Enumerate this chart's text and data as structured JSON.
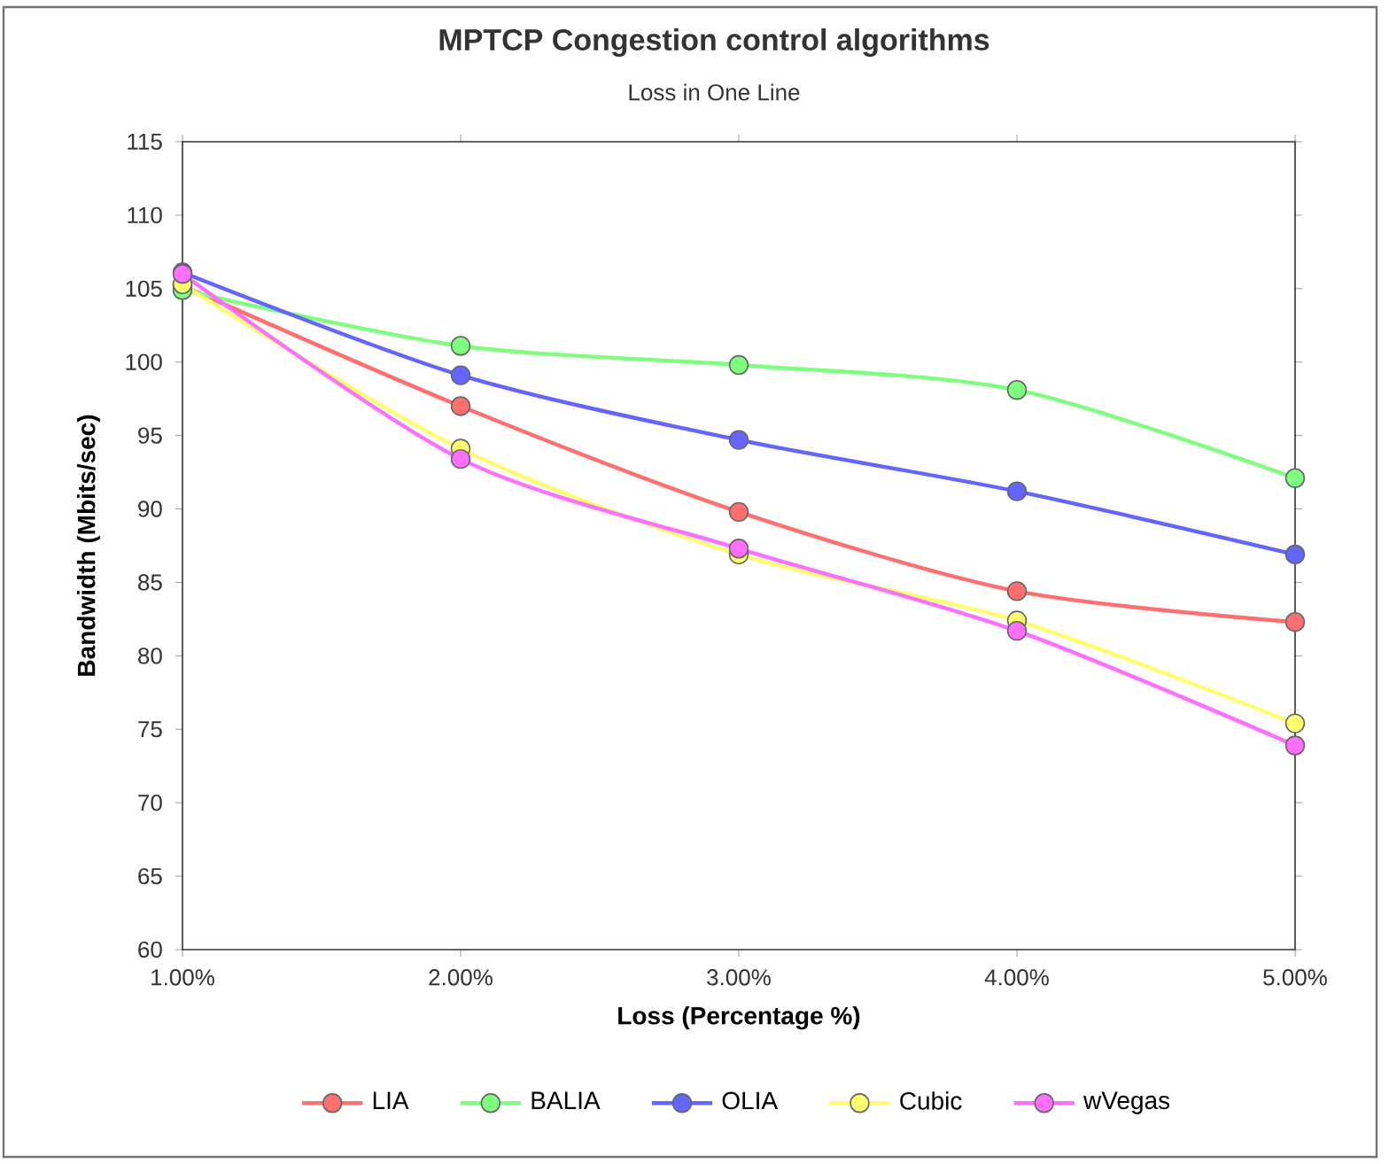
{
  "chart_data": {
    "type": "line",
    "title": "MPTCP Congestion control algorithms",
    "subtitle": "Loss in One Line",
    "xlabel": "Loss (Percentage %)",
    "ylabel": "Bandwidth (Mbits/sec)",
    "x": [
      1,
      2,
      3,
      4,
      5
    ],
    "xlim": [
      1,
      5
    ],
    "xticks": [
      {
        "value": 1,
        "label": "1.00%"
      },
      {
        "value": 2,
        "label": "2.00%"
      },
      {
        "value": 3,
        "label": "3.00%"
      },
      {
        "value": 4,
        "label": "4.00%"
      },
      {
        "value": 5,
        "label": "5.00%"
      }
    ],
    "ylim": [
      60,
      115
    ],
    "yticks": [
      60,
      65,
      70,
      75,
      80,
      85,
      90,
      95,
      100,
      105,
      110,
      115
    ],
    "series": [
      {
        "name": "LIA",
        "color": "#ff6f6f",
        "values": [
          105.2,
          97.0,
          89.8,
          84.4,
          82.3
        ]
      },
      {
        "name": "BALIA",
        "color": "#7dff7d",
        "values": [
          104.9,
          101.1,
          99.8,
          98.1,
          92.1
        ]
      },
      {
        "name": "OLIA",
        "color": "#6464ff",
        "values": [
          106.1,
          99.1,
          94.7,
          91.2,
          86.9
        ]
      },
      {
        "name": "Cubic",
        "color": "#ffff6e",
        "values": [
          105.3,
          94.1,
          86.9,
          82.4,
          75.4
        ]
      },
      {
        "name": "wVegas",
        "color": "#ff6eff",
        "values": [
          106.0,
          93.4,
          87.3,
          81.7,
          73.9
        ]
      }
    ],
    "legend": "bottom",
    "marker": "circle",
    "line_style": "solid"
  }
}
